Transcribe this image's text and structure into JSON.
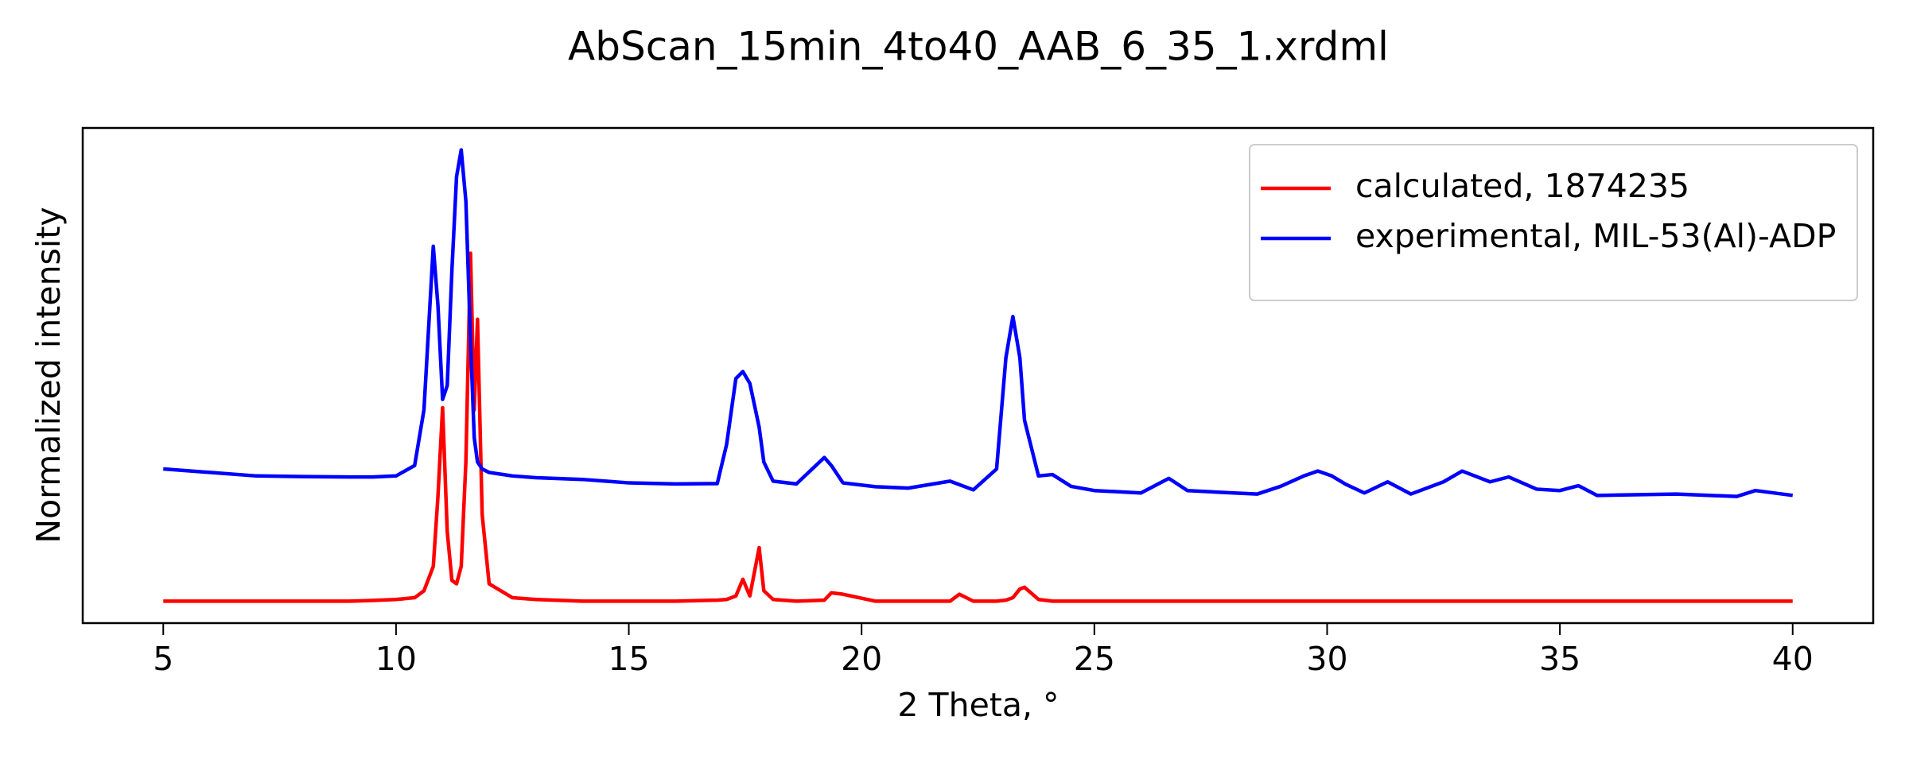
{
  "chart_data": {
    "type": "line",
    "title": "AbScan_15min_4to40_AAB_6_35_1.xrdml",
    "x_label": "2 Theta, °",
    "y_label": "Normalized intensity",
    "x": [
      5,
      6,
      7,
      8,
      9,
      9.5,
      10,
      10.4,
      10.6,
      10.8,
      10.9,
      11.0,
      11.1,
      11.2,
      11.3,
      11.4,
      11.5,
      11.6,
      11.68,
      11.75,
      11.85,
      12.0,
      12.5,
      13,
      14,
      15,
      16,
      16.9,
      17.1,
      17.3,
      17.45,
      17.6,
      17.8,
      17.9,
      18.1,
      18.6,
      19.2,
      19.35,
      19.6,
      20.3,
      21,
      21.9,
      22.1,
      22.4,
      22.9,
      23.1,
      23.25,
      23.4,
      23.5,
      23.8,
      24.1,
      24.5,
      25,
      26,
      26.6,
      27,
      28,
      28.5,
      29,
      29.5,
      29.8,
      30.1,
      30.4,
      30.8,
      31.3,
      31.8,
      32.5,
      32.9,
      33.5,
      33.9,
      34.5,
      35,
      35.4,
      35.8,
      37.5,
      38.8,
      39.2,
      40
    ],
    "series": [
      {
        "name": "calculated, 1874235",
        "color": "#ff0000",
        "values": [
          0,
          0,
          0,
          0,
          0,
          0.002,
          0.005,
          0.01,
          0.03,
          0.1,
          0.3,
          0.556,
          0.2,
          0.06,
          0.05,
          0.1,
          0.4,
          1.0,
          0.55,
          0.81,
          0.25,
          0.05,
          0.01,
          0.005,
          0,
          0,
          0,
          0.003,
          0.005,
          0.015,
          0.063,
          0.015,
          0.154,
          0.03,
          0.005,
          0,
          0.003,
          0.024,
          0.02,
          0,
          0,
          0,
          0.02,
          0,
          0,
          0.003,
          0.01,
          0.035,
          0.04,
          0.005,
          0,
          0,
          0,
          0,
          0,
          0,
          0,
          0,
          0,
          0,
          0,
          0,
          0,
          0,
          0,
          0,
          0,
          0,
          0,
          0,
          0,
          0,
          0,
          0,
          0,
          0,
          0,
          0
        ]
      },
      {
        "name": "experimental, MIL-53(Al)-ADP",
        "color": "#0000ff",
        "values": [
          0.38,
          0.37,
          0.36,
          0.358,
          0.357,
          0.357,
          0.36,
          0.39,
          0.55,
          1.02,
          0.85,
          0.58,
          0.62,
          0.95,
          1.22,
          1.297,
          1.15,
          0.75,
          0.47,
          0.4,
          0.38,
          0.37,
          0.36,
          0.355,
          0.35,
          0.34,
          0.337,
          0.338,
          0.45,
          0.64,
          0.66,
          0.626,
          0.5,
          0.4,
          0.345,
          0.337,
          0.413,
          0.39,
          0.34,
          0.329,
          0.325,
          0.345,
          0.335,
          0.32,
          0.38,
          0.7,
          0.818,
          0.7,
          0.52,
          0.36,
          0.364,
          0.33,
          0.318,
          0.311,
          0.353,
          0.318,
          0.311,
          0.308,
          0.33,
          0.36,
          0.374,
          0.36,
          0.336,
          0.311,
          0.343,
          0.308,
          0.343,
          0.374,
          0.343,
          0.357,
          0.322,
          0.318,
          0.332,
          0.304,
          0.308,
          0.301,
          0.318,
          0.304
        ]
      }
    ],
    "xlim": [
      3.27,
      41.73
    ],
    "ylim": [
      -0.063,
      1.36
    ],
    "xticks": [
      5,
      10,
      15,
      20,
      25,
      30,
      35,
      40
    ],
    "legend": "upper right"
  }
}
